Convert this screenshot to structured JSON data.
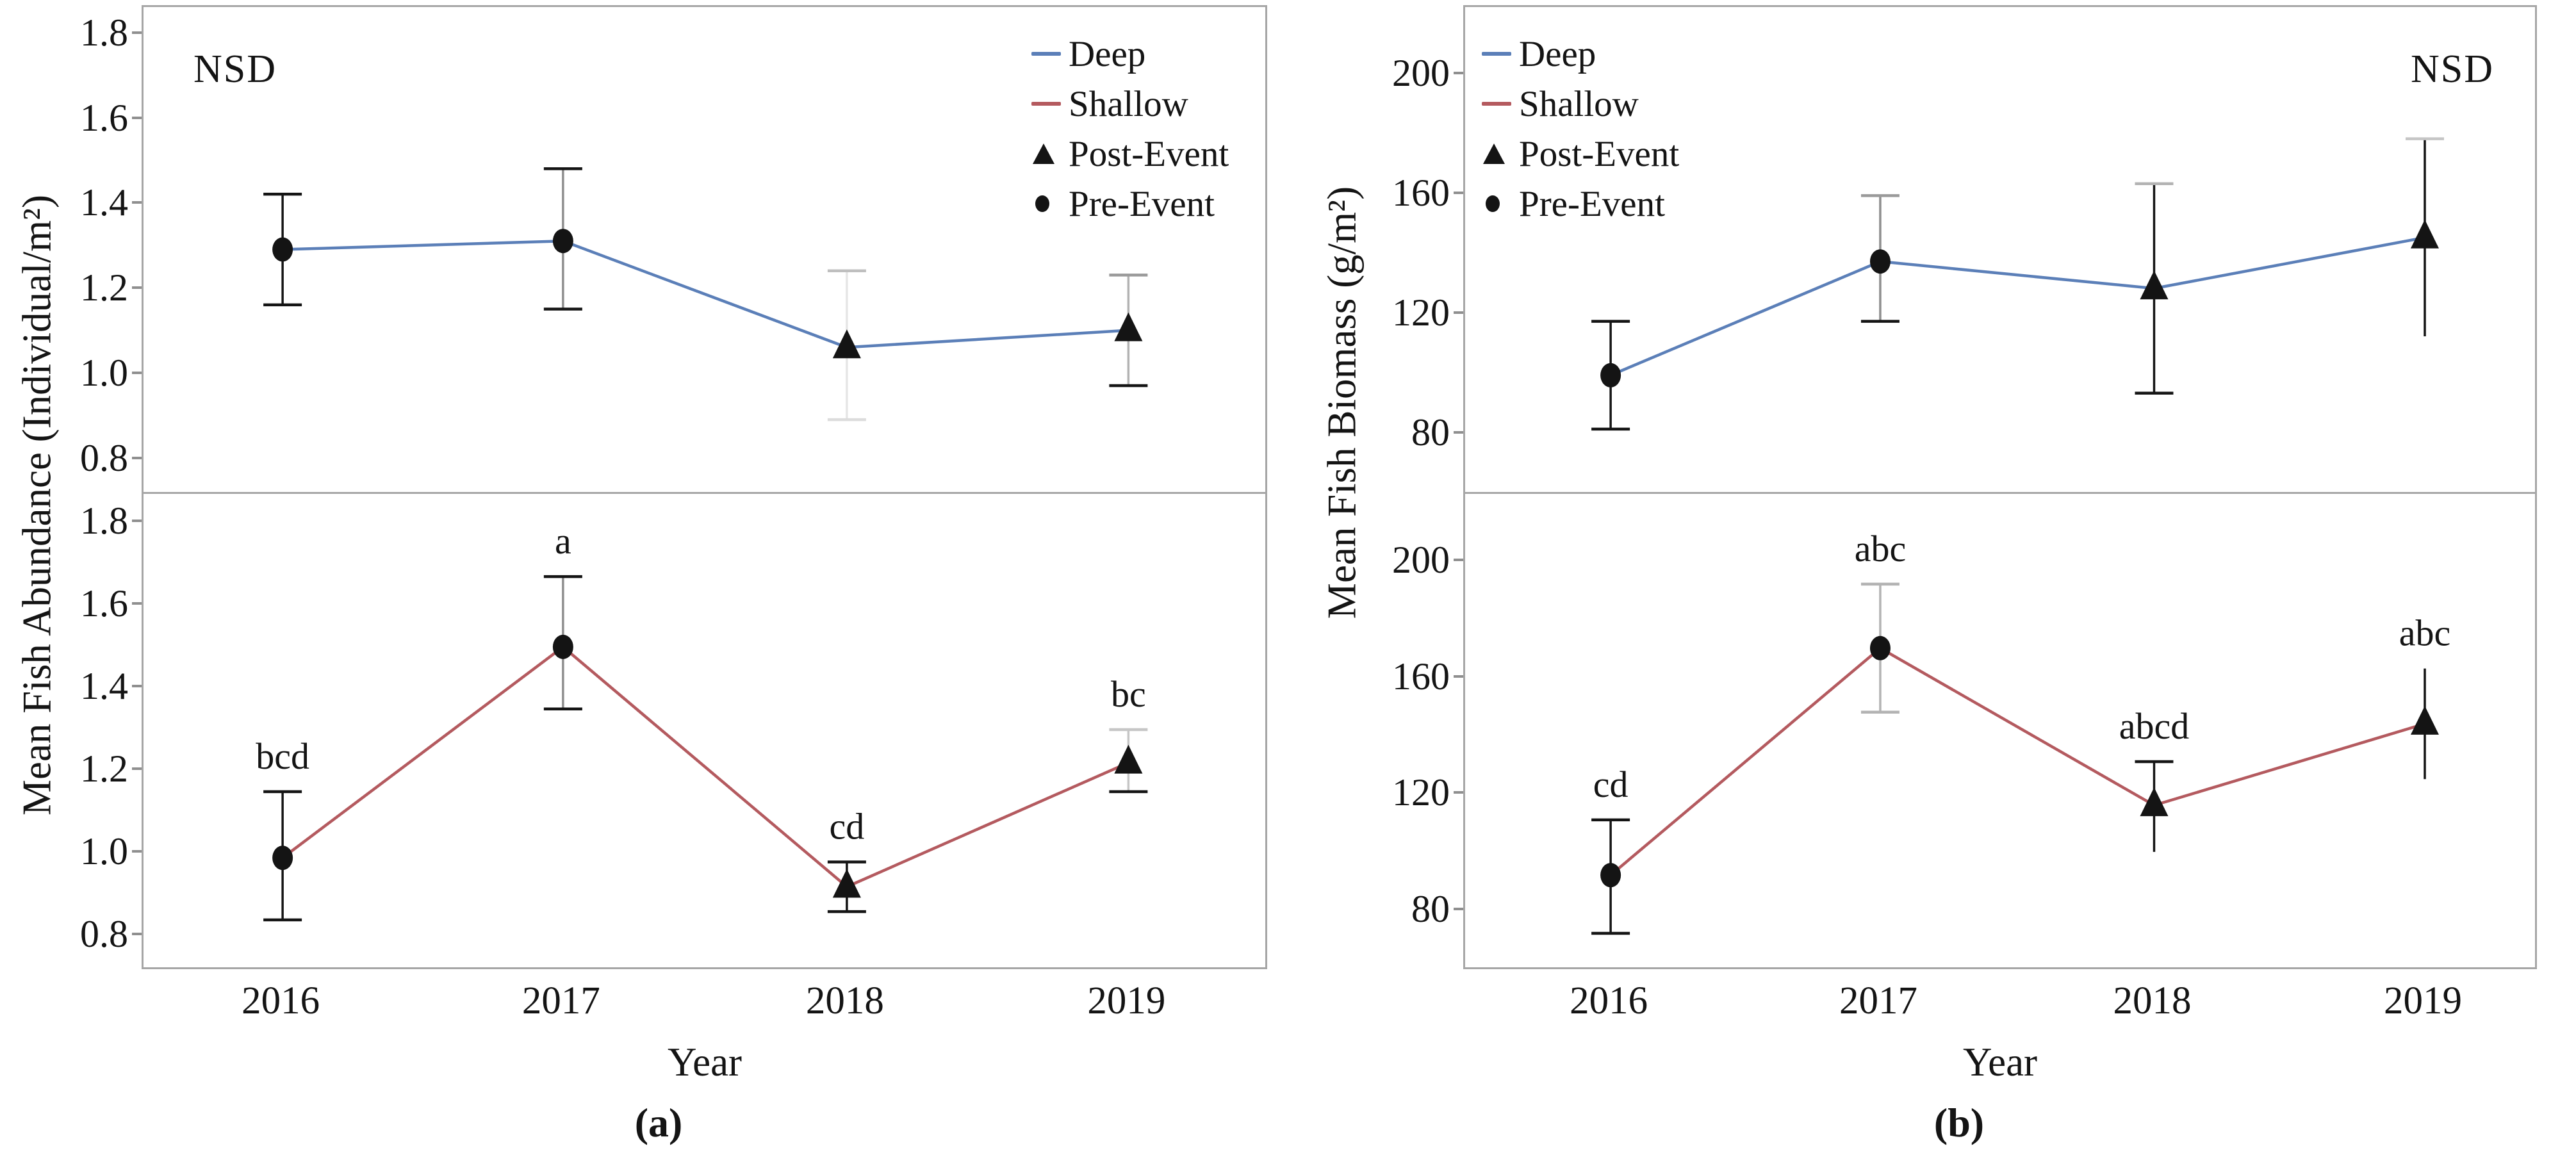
{
  "figure": {
    "colors": {
      "deep": "#5b7fb8",
      "shallow": "#b45a5f",
      "marker": "#141414",
      "panel_border": "#a6a6a6"
    },
    "legend": {
      "items": [
        {
          "label": "Deep",
          "swatch": "deep-line"
        },
        {
          "label": "Shallow",
          "swatch": "shallow-line"
        },
        {
          "label": "Post-Event",
          "swatch": "triangle"
        },
        {
          "label": "Pre-Event",
          "swatch": "circle"
        }
      ]
    }
  },
  "chart_data": [
    {
      "panel": "a",
      "type": "line",
      "title": "",
      "ylabel": "Mean Fish Abundance (Individual/m²)",
      "xlabel": "Year",
      "caption": "(a)",
      "x": [
        "2016",
        "2017",
        "2018",
        "2019"
      ],
      "grid": false,
      "subplots": [
        {
          "series": "Deep",
          "color": "deep",
          "annotation": "NSD",
          "annotation_pos": "top-left",
          "legend_position": "top-right",
          "ylim": [
            0.72,
            1.86
          ],
          "yticks": [
            "1.8",
            "1.6",
            "1.4",
            "1.2",
            "1.0",
            "0.8"
          ],
          "points": [
            {
              "year": "2016",
              "y": 1.29,
              "err": [
                1.16,
                1.42
              ],
              "marker": "circle",
              "letter": "",
              "bar": "#141414",
              "cap_top": "#141414",
              "cap_bot": "#141414"
            },
            {
              "year": "2017",
              "y": 1.31,
              "err": [
                1.15,
                1.48
              ],
              "marker": "circle",
              "letter": "",
              "bar": "#8f8f8f",
              "cap_top": "#141414",
              "cap_bot": "#141414"
            },
            {
              "year": "2018",
              "y": 1.06,
              "err": [
                0.89,
                1.24
              ],
              "marker": "triangle",
              "letter": "",
              "bar": "#e6e6e6",
              "cap_top": "#bfbfbf",
              "cap_bot": "#dcdcdc"
            },
            {
              "year": "2019",
              "y": 1.1,
              "err": [
                0.97,
                1.23
              ],
              "marker": "triangle",
              "letter": "",
              "bar": "#b3b3b3",
              "cap_top": "#9a9a9a",
              "cap_bot": "#141414"
            }
          ]
        },
        {
          "series": "Shallow",
          "color": "shallow",
          "annotation": "",
          "annotation_pos": "",
          "legend_position": "none",
          "ylim": [
            0.72,
            1.86
          ],
          "yticks": [
            "1.8",
            "1.6",
            "1.4",
            "1.2",
            "1.0",
            "0.8"
          ],
          "points": [
            {
              "year": "2016",
              "y": 0.98,
              "err": [
                0.83,
                1.14
              ],
              "marker": "circle",
              "letter": "bcd",
              "bar": "#141414",
              "cap_top": "#141414",
              "cap_bot": "#141414"
            },
            {
              "year": "2017",
              "y": 1.49,
              "err": [
                1.34,
                1.66
              ],
              "marker": "circle",
              "letter": "a",
              "bar": "#8f8f8f",
              "cap_top": "#141414",
              "cap_bot": "#141414"
            },
            {
              "year": "2018",
              "y": 0.91,
              "err": [
                0.85,
                0.97
              ],
              "marker": "triangle",
              "letter": "cd",
              "bar": "#141414",
              "cap_top": "#141414",
              "cap_bot": "#141414"
            },
            {
              "year": "2019",
              "y": 1.21,
              "err": [
                1.14,
                1.29
              ],
              "marker": "triangle",
              "letter": "bc",
              "bar": "#c6c6c6",
              "cap_top": "#c6c6c6",
              "cap_bot": "#141414"
            }
          ]
        }
      ]
    },
    {
      "panel": "b",
      "type": "line",
      "title": "",
      "ylabel": "Mean Fish Biomass (g/m²)",
      "xlabel": "Year",
      "caption": "(b)",
      "x": [
        "2016",
        "2017",
        "2018",
        "2019"
      ],
      "grid": false,
      "subplots": [
        {
          "series": "Deep",
          "color": "deep",
          "annotation": "NSD",
          "annotation_pos": "top-right",
          "legend_position": "top-left",
          "ylim": [
            60,
            222
          ],
          "yticks": [
            "200",
            "160",
            "120",
            "80"
          ],
          "points": [
            {
              "year": "2016",
              "y": 99,
              "err": [
                81,
                117
              ],
              "marker": "circle",
              "letter": "",
              "bar": "#141414",
              "cap_top": "#141414",
              "cap_bot": "#141414"
            },
            {
              "year": "2017",
              "y": 137,
              "err": [
                117,
                159
              ],
              "marker": "circle",
              "letter": "",
              "bar": "#8f8f8f",
              "cap_top": "#9a9a9a",
              "cap_bot": "#141414"
            },
            {
              "year": "2018",
              "y": 128,
              "err": [
                93,
                163
              ],
              "marker": "triangle",
              "letter": "",
              "bar": "#141414",
              "cap_top": "#b3b3b3",
              "cap_bot": "#141414"
            },
            {
              "year": "2019",
              "y": 145,
              "err": [
                112,
                178
              ],
              "marker": "triangle",
              "letter": "",
              "bar": "#141414",
              "cap_top": "#c6c6c6",
              "cap_bot": null
            }
          ]
        },
        {
          "series": "Shallow",
          "color": "shallow",
          "annotation": "",
          "annotation_pos": "",
          "legend_position": "none",
          "ylim": [
            60,
            222
          ],
          "yticks": [
            "200",
            "160",
            "120",
            "80"
          ],
          "points": [
            {
              "year": "2016",
              "y": 91,
              "err": [
                71,
                110
              ],
              "marker": "circle",
              "letter": "cd",
              "bar": "#141414",
              "cap_top": "#141414",
              "cap_bot": "#141414"
            },
            {
              "year": "2017",
              "y": 169,
              "err": [
                147,
                191
              ],
              "marker": "circle",
              "letter": "abc",
              "bar": "#b3b3b3",
              "cap_top": "#b3b3b3",
              "cap_bot": "#b3b3b3"
            },
            {
              "year": "2018",
              "y": 115,
              "err": [
                99,
                130
              ],
              "marker": "triangle",
              "letter": "abcd",
              "bar": "#141414",
              "cap_top": "#141414",
              "cap_bot": null
            },
            {
              "year": "2019",
              "y": 143,
              "err": [
                124,
                162
              ],
              "marker": "triangle",
              "letter": "abc",
              "bar": "#141414",
              "cap_top": null,
              "cap_bot": null
            }
          ]
        }
      ]
    }
  ]
}
